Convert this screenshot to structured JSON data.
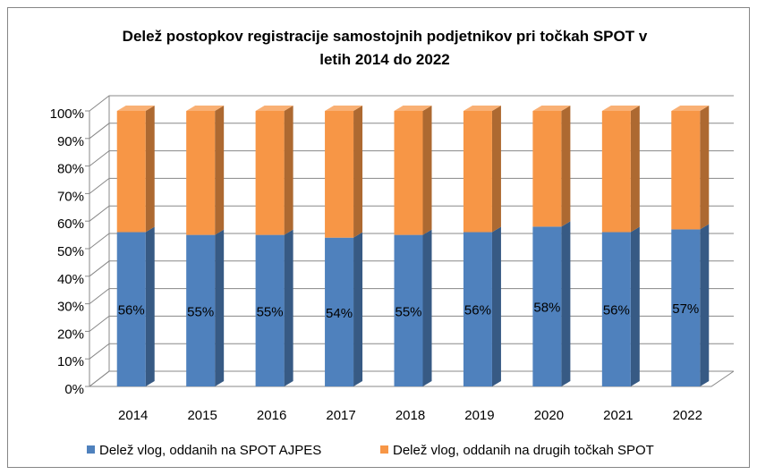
{
  "chart_data": {
    "type": "stacked_bar_3d",
    "title": "Delež postopkov registracije samostojnih podjetnikov pri točkah SPOT v letih 2014 do 2022",
    "categories": [
      "2014",
      "2015",
      "2016",
      "2017",
      "2018",
      "2019",
      "2020",
      "2021",
      "2022"
    ],
    "series": [
      {
        "name": "Delež vlog, oddanih na SPOT AJPES",
        "color": "#4f81bd",
        "values": [
          56,
          55,
          55,
          54,
          55,
          56,
          58,
          56,
          57
        ],
        "value_labels": [
          "56%",
          "55%",
          "55%",
          "54%",
          "55%",
          "56%",
          "58%",
          "56%",
          "57%"
        ]
      },
      {
        "name": "Delež vlog, oddanih na drugih točkah SPOT",
        "color": "#f79646",
        "values": [
          44,
          45,
          45,
          46,
          45,
          44,
          42,
          44,
          43
        ]
      }
    ],
    "ylim": [
      0,
      100
    ],
    "yticks": [
      {
        "value": 0,
        "label": "0%"
      },
      {
        "value": 10,
        "label": "10%"
      },
      {
        "value": 20,
        "label": "20%"
      },
      {
        "value": 30,
        "label": "30%"
      },
      {
        "value": 40,
        "label": "40%"
      },
      {
        "value": 50,
        "label": "50%"
      },
      {
        "value": 60,
        "label": "60%"
      },
      {
        "value": 70,
        "label": "70%"
      },
      {
        "value": 80,
        "label": "80%"
      },
      {
        "value": 90,
        "label": "90%"
      },
      {
        "value": 100,
        "label": "100%"
      }
    ],
    "grid": true,
    "legend": "bottom"
  }
}
